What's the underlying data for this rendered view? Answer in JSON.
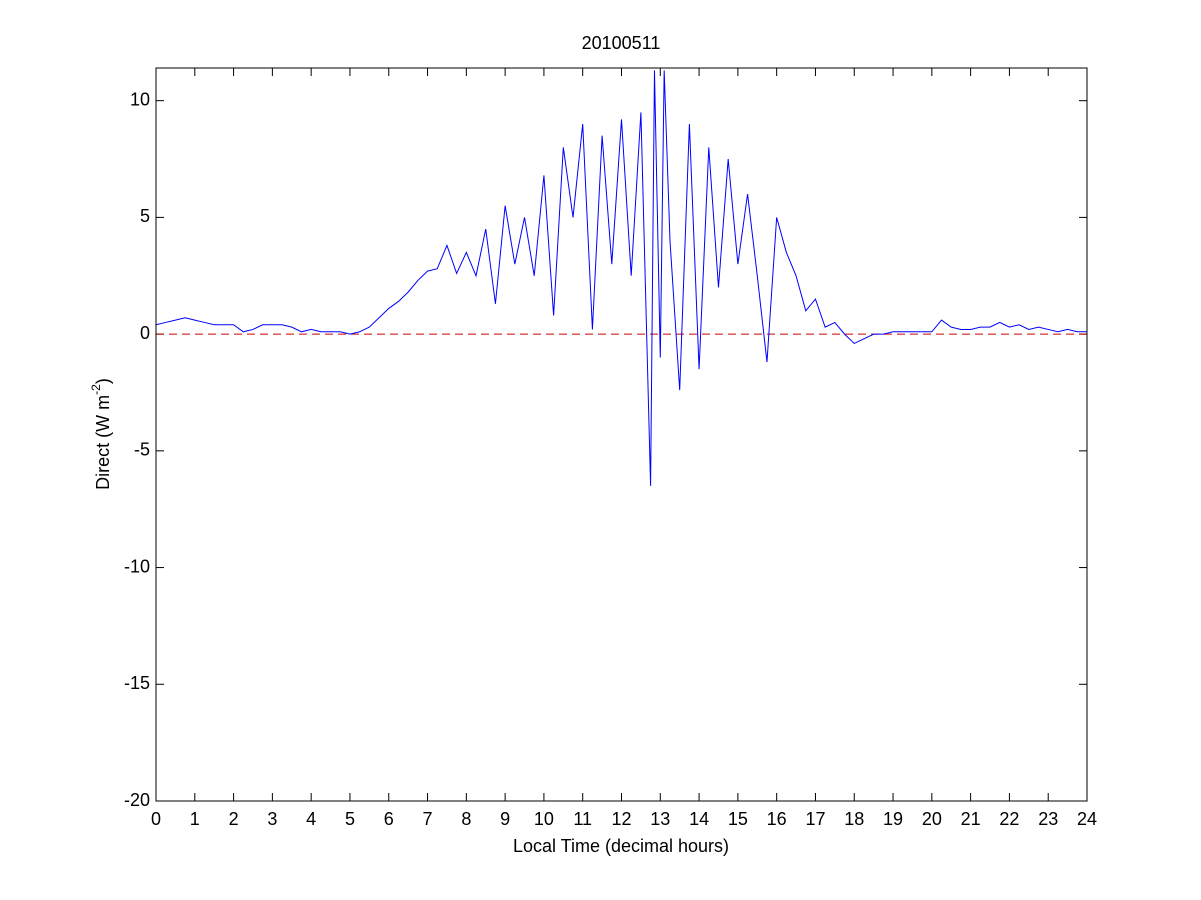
{
  "chart_data": {
    "type": "line",
    "title": "20100511",
    "xlabel": "Local Time (decimal hours)",
    "ylabel": [
      "Direct (W m",
      "-2",
      ")"
    ],
    "x": [
      0,
      0.25,
      0.5,
      0.75,
      1,
      1.25,
      1.5,
      1.75,
      2,
      2.25,
      2.5,
      2.75,
      3,
      3.25,
      3.5,
      3.75,
      4,
      4.25,
      4.5,
      4.75,
      5,
      5.25,
      5.5,
      5.75,
      6,
      6.25,
      6.5,
      6.75,
      7,
      7.25,
      7.5,
      7.75,
      8,
      8.25,
      8.5,
      8.75,
      9,
      9.25,
      9.5,
      9.75,
      10,
      10.25,
      10.5,
      10.75,
      11,
      11.25,
      11.5,
      11.75,
      12,
      12.25,
      12.5,
      12.75,
      12.85,
      13,
      13.1,
      13.25,
      13.5,
      13.75,
      14,
      14.25,
      14.5,
      14.75,
      15,
      15.25,
      15.5,
      15.75,
      16,
      16.25,
      16.5,
      16.75,
      17,
      17.25,
      17.5,
      17.75,
      18,
      18.25,
      18.5,
      18.75,
      19,
      19.25,
      19.5,
      19.75,
      20,
      20.25,
      20.5,
      20.75,
      21,
      21.25,
      21.5,
      21.75,
      22,
      22.25,
      22.5,
      22.75,
      23,
      23.25,
      23.5,
      23.75,
      24
    ],
    "series": [
      {
        "color": "#0000ff",
        "values": [
          0.4,
          0.5,
          0.6,
          0.7,
          0.6,
          0.5,
          0.4,
          0.4,
          0.4,
          0.1,
          0.2,
          0.4,
          0.4,
          0.4,
          0.3,
          0.1,
          0.2,
          0.1,
          0.1,
          0.1,
          0,
          0.1,
          0.3,
          0.7,
          1.1,
          1.4,
          1.8,
          2.3,
          2.7,
          2.8,
          3.8,
          2.6,
          3.5,
          2.5,
          4.5,
          1.3,
          5.5,
          3.0,
          5.0,
          2.5,
          6.8,
          0.8,
          8.0,
          5.0,
          9.0,
          0.2,
          8.5,
          3.0,
          9.2,
          2.5,
          9.5,
          -6.5,
          11.3,
          -1.0,
          11.3,
          4.0,
          -2.4,
          9.0,
          -1.5,
          8.0,
          2.0,
          7.5,
          3.0,
          6.0,
          2.5,
          -1.2,
          5.0,
          3.5,
          2.5,
          1.0,
          1.5,
          0.3,
          0.5,
          0,
          -0.4,
          -0.2,
          0,
          0,
          0.1,
          0.1,
          0.1,
          0.1,
          0.1,
          0.6,
          0.3,
          0.2,
          0.2,
          0.3,
          0.3,
          0.5,
          0.3,
          0.4,
          0.2,
          0.3,
          0.2,
          0.1,
          0.2,
          0.1,
          0.1
        ]
      }
    ],
    "hline": {
      "value": 0,
      "color": "#cc0000"
    },
    "xlim": [
      0,
      24
    ],
    "xticks": [
      0,
      1,
      2,
      3,
      4,
      5,
      6,
      7,
      8,
      9,
      10,
      11,
      12,
      13,
      14,
      15,
      16,
      17,
      18,
      19,
      20,
      21,
      22,
      23,
      24
    ],
    "ylim": [
      -20,
      11.4
    ],
    "yticks": [
      -20,
      -15,
      -10,
      -5,
      0,
      5,
      10
    ]
  }
}
